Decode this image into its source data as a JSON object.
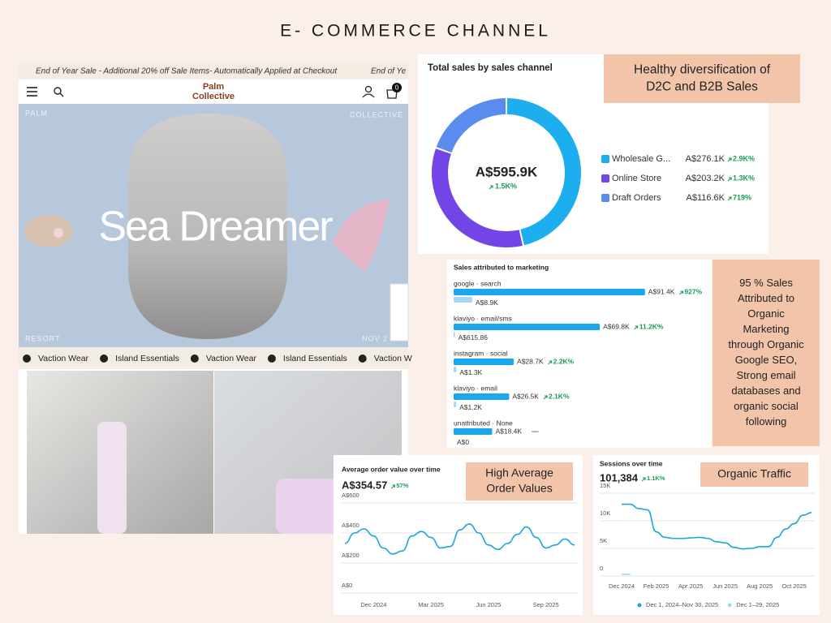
{
  "title": "E- COMMERCE CHANNEL",
  "store": {
    "announcement": "End of Year Sale - Additional 20% off Sale Items- Automatically Applied at Checkout",
    "announcement_next": "End of Ye",
    "brand": [
      "Palm",
      "Collective"
    ],
    "cart_count": "0",
    "hero_text": "Sea Dreamer",
    "corner_labels": [
      "PALM",
      "COLLECTIVE",
      "RESORT",
      "NOV 2"
    ],
    "ticker": [
      "Vaction Wear",
      "Island Essentials",
      "Vaction Wear",
      "Island Essentials",
      "Vaction W"
    ]
  },
  "callouts": [
    {
      "lines": [
        "Healthy diversification of",
        "D2C and B2B Sales"
      ]
    },
    {
      "lines": [
        "95 %  Sales",
        "Attributed to",
        "Organic",
        "Marketing",
        "through Organic",
        "Google SEO,",
        "Strong email",
        "databases and",
        "organic social",
        "following"
      ]
    },
    {
      "lines": [
        "High Average",
        "Order Values"
      ]
    },
    {
      "lines": [
        "Organic Traffic"
      ]
    }
  ],
  "chart_data": [
    {
      "type": "donut",
      "title": "Total sales by sales channel",
      "total": "A$595.9K",
      "total_change": "1.5K%",
      "categories": [
        "Wholesale G...",
        "Online Store",
        "Draft Orders"
      ],
      "values": [
        276.1,
        203.2,
        116.6
      ],
      "value_labels": [
        "A$276.1K",
        "A$203.2K",
        "A$116.6K"
      ],
      "changes": [
        "2.9K%",
        "1.3K%",
        "719%"
      ],
      "colors": [
        "#1daeef",
        "#7445e6",
        "#5a8cf0"
      ]
    },
    {
      "type": "hbar",
      "title": "Sales attributed to marketing",
      "categories": [
        "google · search",
        "klaviyo · email/sms",
        "instagram · social",
        "klaviyo · email",
        "unattributed · None"
      ],
      "series": [
        {
          "color": "#1aa7ec",
          "values": [
            91.4,
            69.8,
            28.7,
            26.5,
            18.4
          ],
          "value_labels": [
            "A$91.4K",
            "A$69.8K",
            "A$28.7K",
            "A$26.5K",
            "A$18.4K"
          ]
        },
        {
          "color": "#a6d7f6",
          "values": [
            8.9,
            0.61586,
            1.3,
            1.2,
            0
          ],
          "value_labels": [
            "A$8.9K",
            "A$615.86",
            "A$1.3K",
            "A$1.2K",
            "A$0"
          ]
        }
      ],
      "changes": [
        "927%",
        "11.2K%",
        "2.2K%",
        "2.1K%",
        "—"
      ]
    },
    {
      "type": "line",
      "title": "Average order value over time",
      "headline": "A$354.57",
      "headline_change": "57%",
      "categories": [
        null,
        null,
        null,
        "Dec 2024",
        null,
        null,
        null,
        null,
        null,
        "Mar 2025",
        null,
        null,
        null,
        null,
        null,
        "Jun 2025",
        null,
        null,
        null,
        null,
        null,
        "Sep 2025",
        null,
        null,
        null
      ],
      "series": [
        {
          "color": "#1aa7d9",
          "values": [
            330,
            400,
            427,
            380,
            300,
            260,
            280,
            380,
            410,
            370,
            300,
            310,
            420,
            460,
            400,
            320,
            290,
            330,
            390,
            440,
            370,
            300,
            320,
            360,
            320
          ]
        }
      ],
      "ylim": [
        0,
        600
      ],
      "yticks": [
        {
          "value": 0,
          "label": "A$0"
        },
        {
          "value": 200,
          "label": "A$200"
        },
        {
          "value": 400,
          "label": "A$400"
        },
        {
          "value": 600,
          "label": "A$600"
        }
      ],
      "grid": true
    },
    {
      "type": "line",
      "title": "Sessions over time",
      "headline": "101,384",
      "headline_change": "1.1K%",
      "categories": [
        "Dec 2024",
        null,
        null,
        null,
        "Feb 2025",
        null,
        null,
        null,
        "Apr 2025",
        null,
        null,
        null,
        "Jun 2025",
        null,
        null,
        null,
        "Aug 2025",
        null,
        null,
        null,
        "Oct 2025",
        null,
        null
      ],
      "series": [
        {
          "name": "Dec 1, 2024–Nov 30, 2025",
          "color": "#1aa7d9",
          "values": [
            13000,
            13000,
            12200,
            12000,
            8000,
            7000,
            6800,
            6800,
            6900,
            7000,
            6800,
            6200,
            6000,
            5200,
            4900,
            5000,
            5300,
            5300,
            7000,
            8500,
            9500,
            11000,
            11500
          ]
        },
        {
          "name": "Dec 1–29, 2025",
          "color": "#a6d7f6",
          "values": [
            300,
            300,
            null,
            null,
            null,
            null,
            null,
            null,
            null,
            null,
            null,
            null,
            null,
            null,
            null,
            null,
            null,
            null,
            null,
            null,
            null,
            null,
            null
          ]
        }
      ],
      "ylim": [
        0,
        15000
      ],
      "yticks": [
        0,
        {
          "value": 5000,
          "label": "5K"
        },
        {
          "value": 10000,
          "label": "10K"
        },
        {
          "value": 15000,
          "label": "15K"
        }
      ],
      "grid": true
    }
  ]
}
